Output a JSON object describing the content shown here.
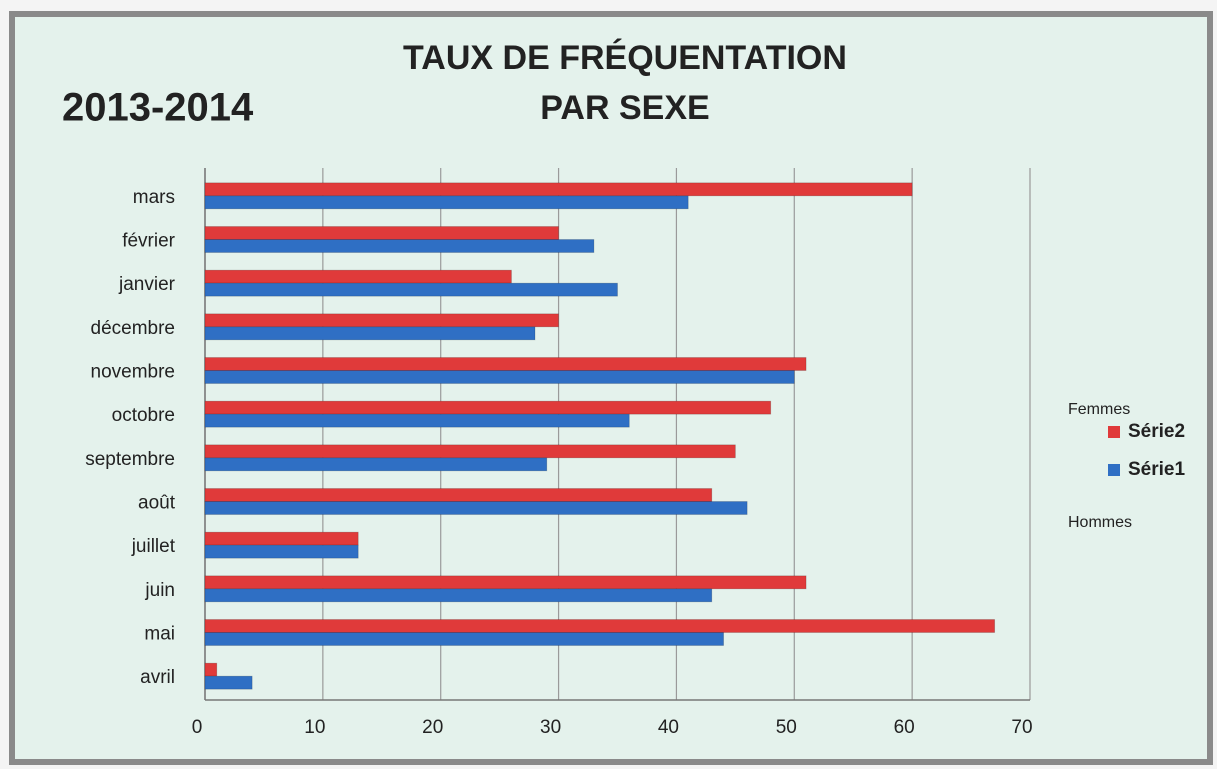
{
  "chart_data": {
    "type": "hbar",
    "title": "TAUX DE FRÉQUENTATION",
    "subtitle": "PAR SEXE",
    "annotations": [
      "2013-2014",
      "Femmes",
      "Hommes"
    ],
    "categories": [
      "mars",
      "février",
      "janvier",
      "décembre",
      "novembre",
      "octobre",
      "septembre",
      "août",
      "juillet",
      "juin",
      "mai",
      "avril"
    ],
    "series": [
      {
        "name": "Série2",
        "color": "#e03a3a",
        "values": [
          60,
          30,
          26,
          30,
          51,
          48,
          45,
          43,
          13,
          51,
          67,
          1
        ]
      },
      {
        "name": "Série1",
        "color": "#2f6fc4",
        "values": [
          41,
          33,
          35,
          28,
          50,
          36,
          29,
          46,
          13,
          43,
          44,
          4
        ]
      }
    ],
    "xlim": [
      0,
      70
    ],
    "xticks": [
      0,
      10,
      20,
      30,
      40,
      50,
      60,
      70
    ],
    "grid": true,
    "legend": "right"
  }
}
